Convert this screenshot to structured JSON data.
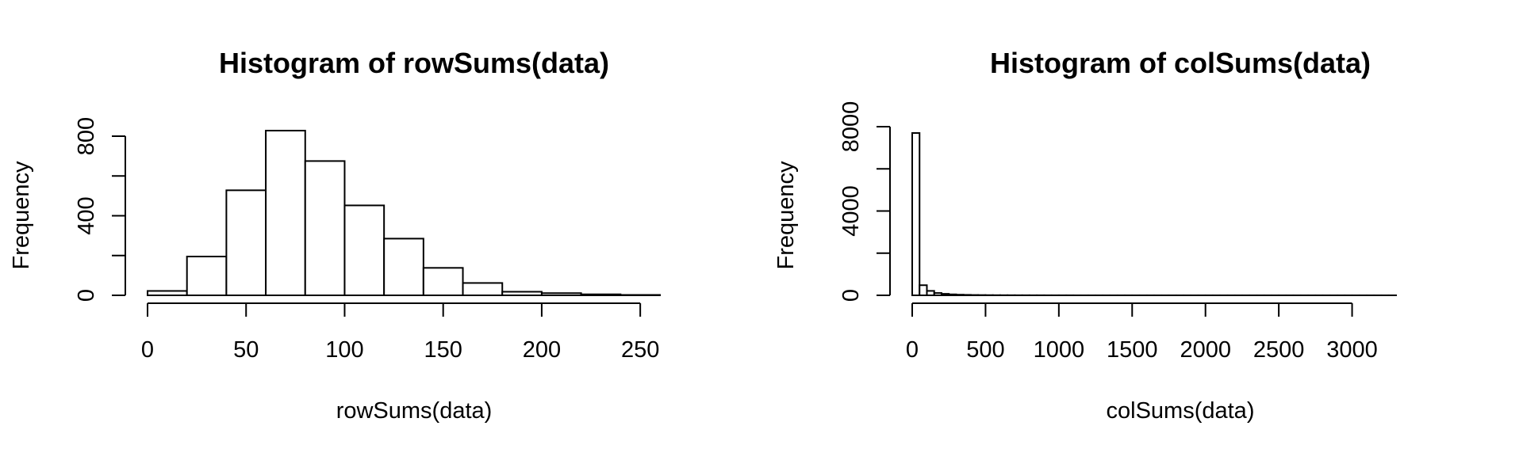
{
  "chart_data": [
    {
      "type": "bar",
      "title": "Histogram of rowSums(data)",
      "xlabel": "rowSums(data)",
      "ylabel": "Frequency",
      "bin_edges": [
        0,
        20,
        40,
        60,
        80,
        100,
        120,
        140,
        160,
        180,
        200,
        220,
        240,
        260
      ],
      "values": [
        22,
        195,
        528,
        828,
        675,
        452,
        285,
        138,
        62,
        18,
        11,
        5,
        2
      ],
      "xlim": [
        0,
        260
      ],
      "ylim": [
        0,
        800
      ],
      "x_ticks": [
        0,
        50,
        100,
        150,
        200,
        250
      ],
      "x_tick_labels": [
        "0",
        "50",
        "100",
        "150",
        "200",
        "250"
      ],
      "y_ticks": [
        0,
        200,
        400,
        600,
        800
      ],
      "y_tick_labels": [
        "0",
        "",
        "400",
        "",
        "800"
      ],
      "grid": false,
      "legend": "none"
    },
    {
      "type": "bar",
      "title": "Histogram of colSums(data)",
      "xlabel": "colSums(data)",
      "ylabel": "Frequency",
      "bin_edges": [
        0,
        50,
        100,
        150,
        200,
        250,
        300,
        350,
        400,
        450,
        500,
        550,
        600,
        650,
        700,
        750,
        800,
        850,
        900,
        950,
        1000,
        1050,
        1100,
        1150,
        1200,
        1250,
        1300,
        1350,
        1400,
        1450,
        1500,
        1550,
        1600,
        1650,
        1700,
        1750,
        1800,
        1850,
        1900,
        1950,
        2000,
        2050,
        2100,
        2150,
        2200,
        2250,
        2300,
        2350,
        2400,
        2450,
        2500,
        2550,
        2600,
        2650,
        2700,
        2750,
        2800,
        2850,
        2900,
        2950,
        3000,
        3050,
        3100,
        3150,
        3200,
        3250,
        3300
      ],
      "values": [
        7700,
        480,
        210,
        110,
        70,
        45,
        30,
        22,
        15,
        12,
        9,
        7,
        6,
        5,
        4,
        4,
        3,
        3,
        2,
        2,
        2,
        2,
        1,
        1,
        1,
        1,
        1,
        1,
        1,
        1,
        1,
        1,
        1,
        1,
        1,
        1,
        1,
        1,
        1,
        1,
        1,
        1,
        1,
        1,
        1,
        1,
        1,
        1,
        1,
        1,
        1,
        1,
        1,
        1,
        1,
        1,
        1,
        1,
        1,
        1,
        1,
        1,
        1,
        1,
        1,
        1
      ],
      "xlim": [
        0,
        3300
      ],
      "ylim": [
        0,
        8000
      ],
      "x_ticks": [
        0,
        500,
        1000,
        1500,
        2000,
        2500,
        3000
      ],
      "x_tick_labels": [
        "0",
        "500",
        "1000",
        "1500",
        "2000",
        "2500",
        "3000"
      ],
      "y_ticks": [
        0,
        2000,
        4000,
        6000,
        8000
      ],
      "y_tick_labels": [
        "0",
        "",
        "4000",
        "",
        "8000"
      ],
      "grid": false,
      "legend": "none"
    }
  ]
}
